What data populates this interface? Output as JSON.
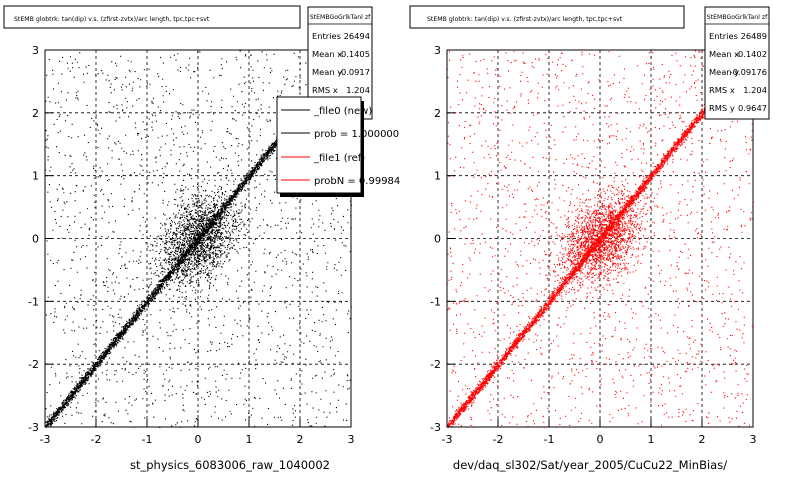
{
  "colors": {
    "background": "#ffffff",
    "new": "#000000",
    "ref": "#ff0000",
    "legend_fill": "#ffffff",
    "shadow": "#000000"
  },
  "chart_data": [
    {
      "type": "scatter",
      "title": "StEMB globtrk: tan(dip) v.s. (zfirst-zvtx)/arc length, tpc,tpc+svt",
      "xlabel": "st_physics_6083006_raw_1040002",
      "ylabel": "",
      "xlim": [
        -3,
        3
      ],
      "ylim": [
        -3,
        3
      ],
      "grid": true,
      "x_ticks": [
        "-3",
        "-2",
        "-1",
        "0",
        "1",
        "2",
        "3"
      ],
      "y_ticks": [
        "-3",
        "-2",
        "-1",
        "0",
        "1",
        "2",
        "3"
      ],
      "color": "#000000",
      "stats": {
        "name": "StEMBGoGrlkTanl zf",
        "rows": [
          {
            "label": "Entries",
            "value": "26494"
          },
          {
            "label": "Mean x",
            "value": "-0.1405"
          },
          {
            "label": "Mean y",
            "value": "-0.0917"
          },
          {
            "label": "RMS x",
            "value": "1.204"
          }
        ]
      },
      "legend": {
        "position": "top-right",
        "entries": [
          {
            "label": "_file0 (new)",
            "color": "#000000"
          },
          {
            "label": "prob = 1.000000",
            "color": "#000000"
          },
          {
            "label": "_file1 (ref)",
            "color": "#ff0000"
          },
          {
            "label": "probN = 0.99984",
            "color": "#ff0000"
          }
        ]
      }
    },
    {
      "type": "scatter",
      "title": "StEMB globtrk: tan(dip) v.s. (zfirst-zvtx)/arc length, tpc,tpc+svt",
      "xlabel": "dev/daq_sl302/Sat/year_2005/CuCu22_MinBias/",
      "ylabel": "",
      "xlim": [
        -3,
        3
      ],
      "ylim": [
        -3,
        3
      ],
      "grid": true,
      "x_ticks": [
        "-3",
        "-2",
        "-1",
        "0",
        "1",
        "2",
        "3"
      ],
      "y_ticks": [
        "-3",
        "-2",
        "-1",
        "0",
        "1",
        "2",
        "3"
      ],
      "color": "#ff0000",
      "stats": {
        "name": "StEMBGoGrlkTanl zf",
        "rows": [
          {
            "label": "Entries",
            "value": "26489"
          },
          {
            "label": "Mean x",
            "value": "-0.1402"
          },
          {
            "label": "Mean y",
            "value": "-0.09176"
          },
          {
            "label": "RMS x",
            "value": "1.204"
          },
          {
            "label": "RMS y",
            "value": "0.9647"
          }
        ]
      }
    }
  ]
}
